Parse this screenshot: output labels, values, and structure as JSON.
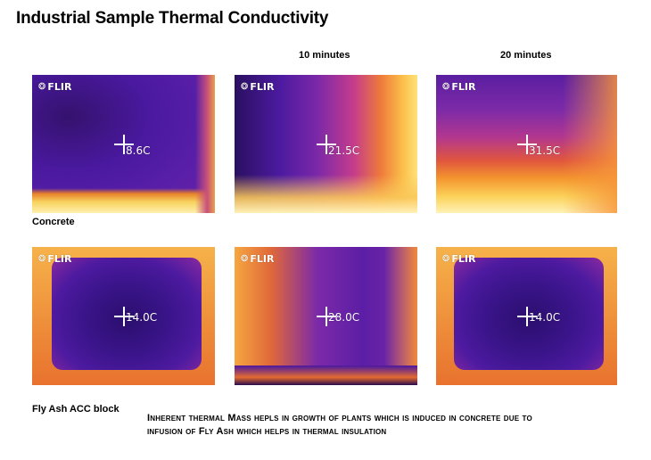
{
  "title": "Industrial Sample Thermal Conductivity",
  "columns": [
    "",
    "10 minutes",
    "20 minutes"
  ],
  "rows": [
    {
      "label": "Concrete",
      "readings": [
        "8.6C",
        "21.5C",
        "31.5C"
      ]
    },
    {
      "label": "Fly Ash ACC block",
      "readings": [
        "14.0C",
        "28.0C",
        "14.0C"
      ]
    }
  ],
  "camera_brand": "FLIR",
  "note_lines": [
    "Inherent thermal Mass hepls in growth of plants which is induced in concrete due to",
    "infusion of Fly Ash which helps in thermal insulation"
  ]
}
